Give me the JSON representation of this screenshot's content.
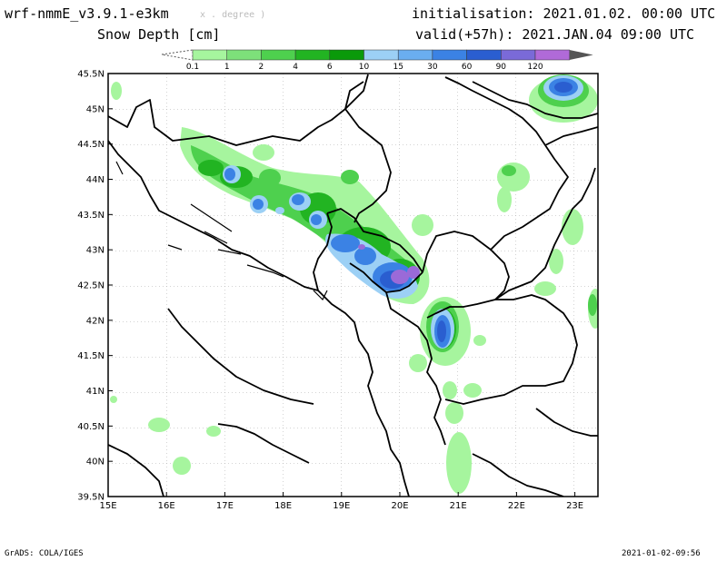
{
  "header": {
    "model": "wrf-nmmE_v3.9.1-e3km",
    "projection": "x . degree )",
    "field": "Snow Depth [cm]",
    "init": "initialisation: 2021.01.02. 00:00 UTC",
    "valid": "valid(+57h): 2021.JAN.04 09:00 UTC"
  },
  "legend": {
    "labels": [
      "0.1",
      "1",
      "2",
      "4",
      "6",
      "10",
      "15",
      "30",
      "60",
      "90",
      "120"
    ],
    "colors": [
      "#a6f59e",
      "#7de07a",
      "#4ed04e",
      "#22b422",
      "#0a9a0a",
      "#9cd0f5",
      "#6aaef0",
      "#3b82e4",
      "#2a5ed0",
      "#7a6ad8",
      "#b06ad8",
      "#555555"
    ]
  },
  "axes": {
    "lat_labels": [
      "45.5N",
      "45N",
      "44.5N",
      "44N",
      "43.5N",
      "43N",
      "42.5N",
      "42N",
      "41.5N",
      "41N",
      "40.5N",
      "40N",
      "39.5N"
    ],
    "lon_labels": [
      "15E",
      "16E",
      "17E",
      "18E",
      "19E",
      "20E",
      "21E",
      "22E",
      "23E"
    ]
  },
  "footer": {
    "left": "GrADS: COLA/IGES",
    "right": "2021-01-02-09:56"
  }
}
